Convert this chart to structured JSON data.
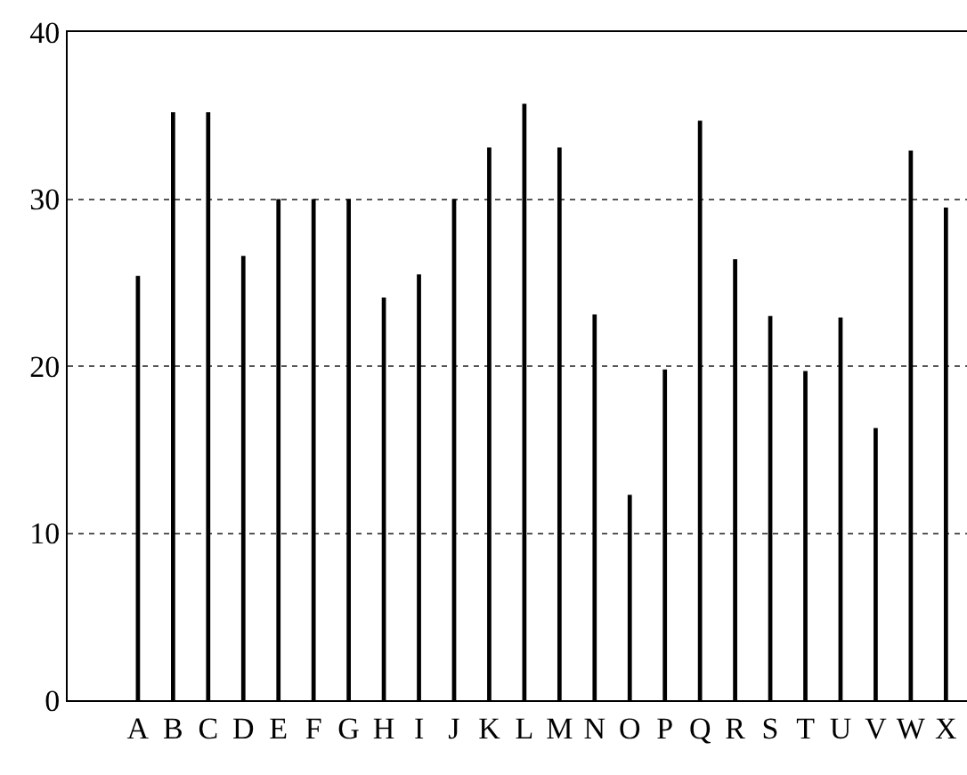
{
  "chart_data": {
    "type": "bar",
    "categories": [
      "A",
      "B",
      "C",
      "D",
      "E",
      "F",
      "G",
      "H",
      "I",
      "J",
      "K",
      "L",
      "M",
      "N",
      "O",
      "P",
      "Q",
      "R",
      "S",
      "T",
      "U",
      "V",
      "W",
      "X"
    ],
    "values": [
      25.4,
      35.2,
      35.2,
      26.6,
      30,
      30,
      30,
      24.1,
      25.5,
      30,
      33.1,
      35.7,
      33.1,
      23.1,
      12.3,
      19.8,
      34.7,
      26.4,
      23,
      19.7,
      22.9,
      16.3,
      32.9,
      29.5
    ],
    "color": "#000000",
    "ylim": [
      0,
      40
    ],
    "yticks": [
      0,
      10,
      20,
      30,
      40
    ],
    "grid": "y"
  }
}
